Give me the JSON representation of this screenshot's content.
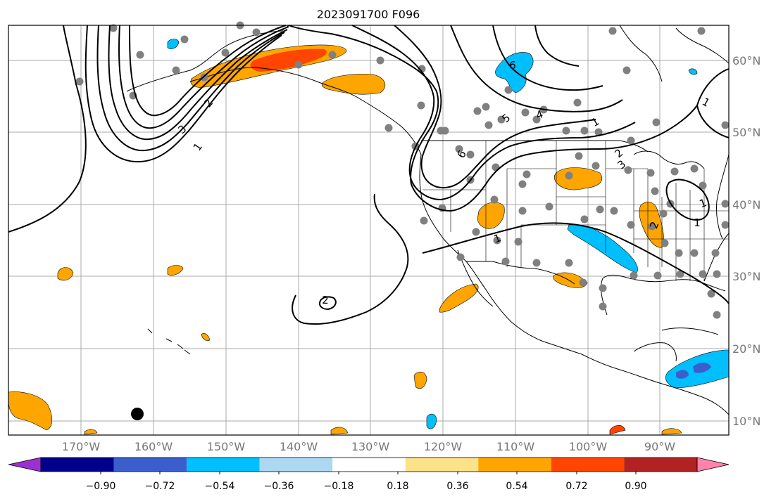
{
  "title": "2023091700 F096",
  "lon_ticks": [
    "170°W",
    "160°W",
    "150°W",
    "140°W",
    "130°W",
    "120°W",
    "110°W",
    "100°W",
    "90°W"
  ],
  "lat_ticks": [
    "60°N",
    "50°N",
    "40°N",
    "30°N",
    "20°N",
    "10°N"
  ],
  "colorbar": {
    "labels": [
      "−0.90",
      "−0.72",
      "−0.54",
      "−0.36",
      "−0.18",
      "0.18",
      "0.36",
      "0.54",
      "0.72",
      "0.90"
    ],
    "colors": [
      "#9b30d0",
      "#00008b",
      "#3a5fcd",
      "#00bfff",
      "#add8f2",
      "#ffffff",
      "#fce38a",
      "#ffa500",
      "#ff4500",
      "#b22222",
      "#ff82ab"
    ]
  },
  "contour_labels": [
    "1",
    "2",
    "3",
    "4",
    "5",
    "6",
    "1",
    "2",
    "3",
    "1",
    "2",
    "1",
    "1",
    "2",
    "1",
    "6"
  ],
  "colors": {
    "grid": "#aaaaaa",
    "coast": "#000000",
    "station": "#808080",
    "orange": "#ffa500",
    "red": "#ff4500",
    "cyan": "#00bfff",
    "blue": "#3a5fcd"
  }
}
